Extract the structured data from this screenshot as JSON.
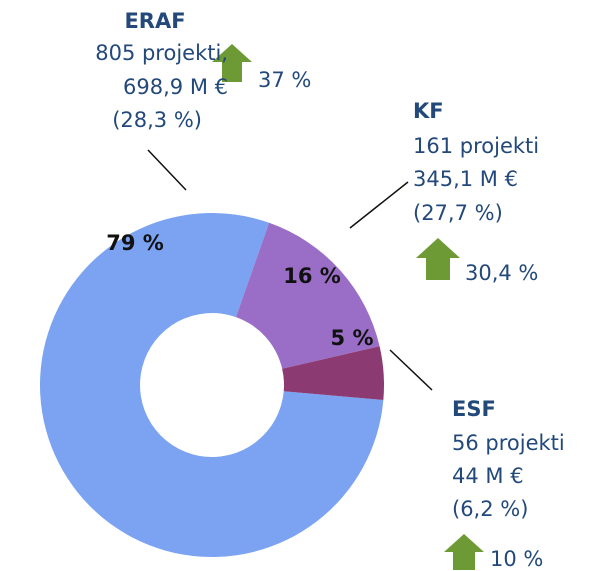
{
  "chart_data": {
    "type": "donut",
    "categories": [
      "ERAF",
      "KF",
      "ESF"
    ],
    "values": [
      79,
      16,
      5
    ],
    "value_labels": [
      "79 %",
      "16 %",
      "5 %"
    ],
    "colors": [
      "#7ba3f2",
      "#9a6ec6",
      "#8b3a72"
    ],
    "annotations": [
      {
        "title": "ERAF",
        "lines": [
          "805 projekti,",
          "698,9 M €",
          "(28,3 %)"
        ],
        "change": "37 %"
      },
      {
        "title": "KF",
        "lines": [
          "161 projekti",
          "345,1 M €",
          "(27,7 %)"
        ],
        "change": "30,4 %"
      },
      {
        "title": "ESF",
        "lines": [
          "56 projekti",
          "44 M €",
          "(6,2 %)"
        ],
        "change": "10 %"
      }
    ]
  }
}
